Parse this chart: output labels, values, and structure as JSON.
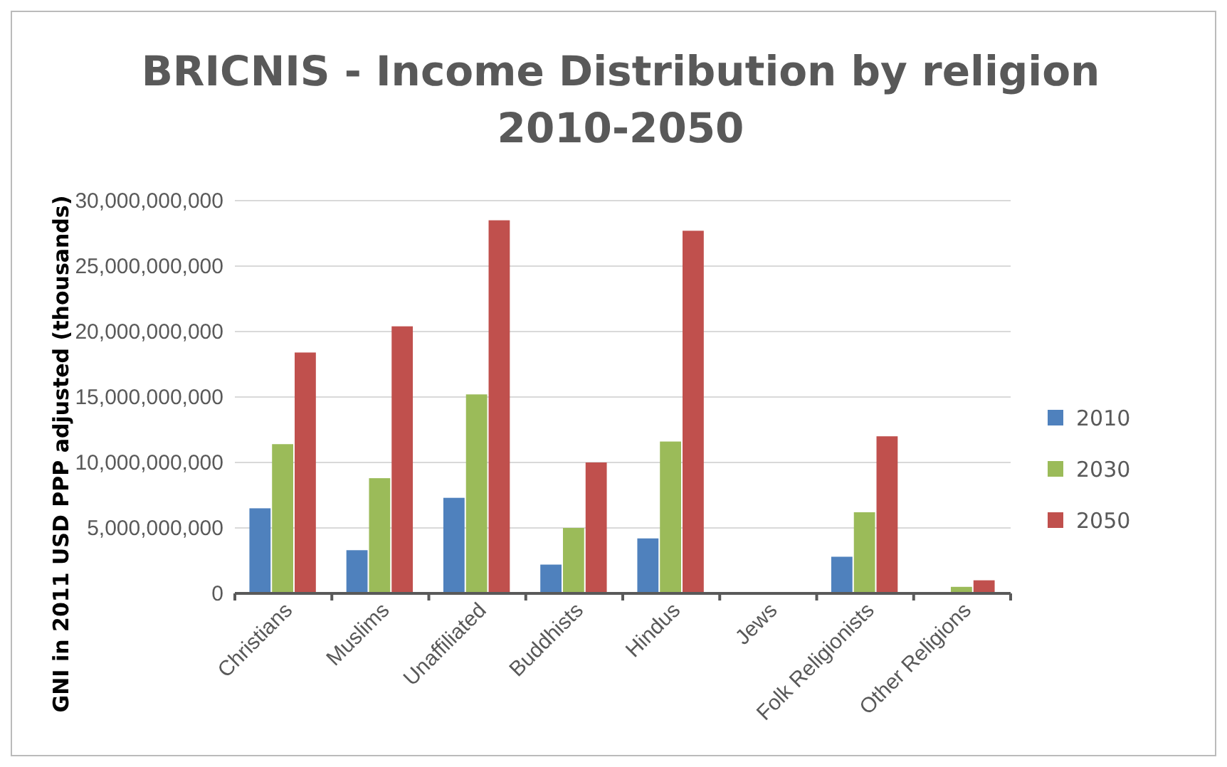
{
  "chart_data": {
    "type": "bar",
    "title": "BRICNIS - Income Distribution by religion 2010-2050",
    "ylabel": "GNI in 2011 USD PPP adjusted (thousands)",
    "categories": [
      "Christians",
      "Muslims",
      "Unaffiliated",
      "Buddhists",
      "Hindus",
      "Jews",
      "Folk Religionists",
      "Other Religions"
    ],
    "series": [
      {
        "name": "2010",
        "color": "#4f81bd",
        "values": [
          6500000000,
          3300000000,
          7300000000,
          2200000000,
          4200000000,
          0,
          2800000000,
          0
        ]
      },
      {
        "name": "2030",
        "color": "#9bbb59",
        "values": [
          11400000000,
          8800000000,
          15200000000,
          5000000000,
          11600000000,
          0,
          6200000000,
          500000000
        ]
      },
      {
        "name": "2050",
        "color": "#c0504d",
        "values": [
          18400000000,
          20400000000,
          28500000000,
          10000000000,
          27700000000,
          0,
          12000000000,
          1000000000
        ]
      }
    ],
    "ylim": [
      0,
      30000000000
    ],
    "yticks": [
      {
        "value": 0,
        "label": "0"
      },
      {
        "value": 5000000000,
        "label": "5,000,000,000"
      },
      {
        "value": 10000000000,
        "label": "10,000,000,000"
      },
      {
        "value": 15000000000,
        "label": "15,000,000,000"
      },
      {
        "value": 20000000000,
        "label": "20,000,000,000"
      },
      {
        "value": 25000000000,
        "label": "25,000,000,000"
      },
      {
        "value": 30000000000,
        "label": "30,000,000,000"
      }
    ],
    "grid": "y",
    "legend": "right"
  }
}
